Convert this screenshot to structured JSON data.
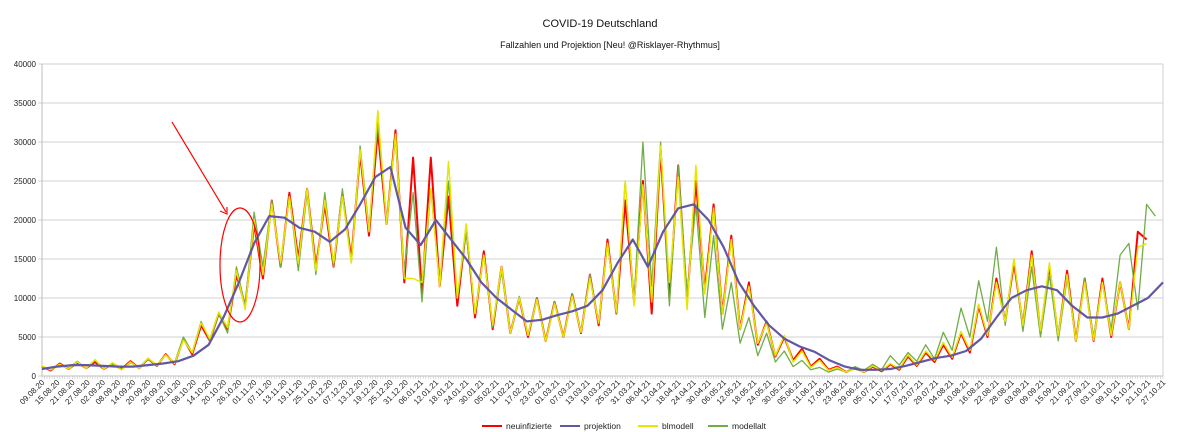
{
  "chart_data": {
    "type": "line",
    "title": "COVID-19 Deutschland",
    "subtitle": "Fallzahlen und Projektion [Neu! @Risklayer-Rhythmus]",
    "xlabel": "",
    "ylabel": "",
    "ylim": [
      0,
      40000
    ],
    "yticks": [
      "0",
      "5000",
      "10000",
      "15000",
      "20000",
      "25000",
      "30000",
      "35000",
      "40000"
    ],
    "grid": true,
    "legend_position": "bottom",
    "x_start_date": "09.08.20",
    "x_days_span": 444,
    "x_tick_step_days": 6,
    "xticks": [
      "09.08.20",
      "15.08.20",
      "21.08.20",
      "27.08.20",
      "02.09.20",
      "08.09.20",
      "14.09.20",
      "20.09.20",
      "26.09.20",
      "02.10.20",
      "08.10.20",
      "14.10.20",
      "20.10.20",
      "26.10.20",
      "01.11.20",
      "07.11.20",
      "13.11.20",
      "19.11.20",
      "25.11.20",
      "01.12.20",
      "07.12.20",
      "13.12.20",
      "19.12.20",
      "25.12.20",
      "31.12.20",
      "06.01.21",
      "12.01.21",
      "18.01.21",
      "24.01.21",
      "30.01.21",
      "05.02.21",
      "11.02.21",
      "17.02.21",
      "23.02.21",
      "01.03.21",
      "07.03.21",
      "13.03.21",
      "19.03.21",
      "25.03.21",
      "31.03.21",
      "06.04.21",
      "12.04.21",
      "18.04.21",
      "24.04.21",
      "30.04.21",
      "06.05.21",
      "12.05.21",
      "18.05.21",
      "24.05.21",
      "30.05.21",
      "05.06.21",
      "11.06.21",
      "17.06.21",
      "23.06.21",
      "29.06.21",
      "05.07.21",
      "11.07.21",
      "17.07.21",
      "23.07.21",
      "29.07.21",
      "04.08.21",
      "10.08.21",
      "16.08.21",
      "22.08.21",
      "28.08.21",
      "03.09.21",
      "09.09.21",
      "15.09.21",
      "21.09.21",
      "27.09.21",
      "03.10.21",
      "09.10.21",
      "15.10.21",
      "21.10.21",
      "27.10.21"
    ],
    "series": [
      {
        "name": "neuinfizierte",
        "color": "#ff0000",
        "width": 2,
        "step_days": 3.5,
        "values": [
          1200,
          700,
          1600,
          900,
          1700,
          1000,
          1800,
          900,
          1600,
          900,
          1900,
          1000,
          2200,
          1300,
          2800,
          1500,
          4800,
          2800,
          6500,
          4500,
          8000,
          6000,
          13000,
          9000,
          19500,
          12500,
          22500,
          14000,
          23500,
          15000,
          24000,
          14000,
          22000,
          14000,
          23500,
          15000,
          28500,
          18000,
          31500,
          19500,
          31500,
          12000,
          28000,
          10500,
          28000,
          11500,
          23000,
          9000,
          19000,
          7500,
          16000,
          6000,
          14000,
          5500,
          10000,
          5000,
          10000,
          4500,
          9500,
          5000,
          10500,
          5500,
          13000,
          6500,
          17500,
          8000,
          22500,
          9500,
          25000,
          8000,
          29000,
          10000,
          27000,
          9500,
          25000,
          11000,
          22000,
          8000,
          18000,
          6000,
          12000,
          4000,
          7000,
          2500,
          5000,
          2000,
          3500,
          1200,
          2200,
          800,
          1200,
          500,
          1000,
          500,
          1200,
          600,
          1500,
          800,
          2500,
          1300,
          3000,
          1800,
          4000,
          2200,
          5500,
          3000,
          9000,
          5000,
          12500,
          7000,
          14500,
          6500,
          16000,
          5500,
          14000,
          5000,
          13500,
          4500,
          12500,
          4500,
          12500,
          5000,
          12000,
          6000,
          18500,
          17500
        ]
      },
      {
        "name": "projektion",
        "color": "#6157a3",
        "width": 2.2,
        "step_days": 6,
        "values": [
          900,
          1200,
          1400,
          1400,
          1300,
          1200,
          1200,
          1400,
          1600,
          1900,
          2600,
          4000,
          7600,
          12000,
          17000,
          20500,
          20300,
          19000,
          18500,
          17200,
          18800,
          22000,
          25500,
          26800,
          19000,
          16800,
          20000,
          17500,
          15000,
          12000,
          10000,
          8500,
          7000,
          7200,
          7800,
          8300,
          9000,
          11000,
          14500,
          17500,
          14000,
          18500,
          21500,
          22000,
          20000,
          16500,
          12000,
          9000,
          6500,
          4800,
          3800,
          3100,
          2000,
          1200,
          800,
          800,
          900,
          1300,
          1800,
          2300,
          2600,
          3200,
          4800,
          7500,
          10000,
          11000,
          11500,
          11000,
          9000,
          7500,
          7500,
          8000,
          9000,
          10000,
          12000
        ]
      },
      {
        "name": "blmodell",
        "color": "#e6e600",
        "width": 1.5,
        "step_days": 3.5,
        "values": [
          1300,
          800,
          1500,
          900,
          1800,
          1000,
          2100,
          900,
          1700,
          800,
          1800,
          1000,
          2300,
          1400,
          2700,
          1600,
          4600,
          3000,
          6800,
          4800,
          8200,
          6200,
          13500,
          8500,
          20000,
          13000,
          22000,
          14500,
          23000,
          14500,
          24000,
          13500,
          22500,
          14500,
          23000,
          14500,
          29000,
          18500,
          34000,
          19500,
          31000,
          12500,
          12500,
          12000,
          24000,
          11500,
          27500,
          10000,
          19500,
          8000,
          15500,
          6500,
          14000,
          5500,
          10000,
          5200,
          9800,
          4500,
          9300,
          5000,
          10200,
          5600,
          12500,
          6800,
          17000,
          8200,
          25000,
          9000,
          24500,
          9500,
          29500,
          12000,
          25500,
          8500,
          27000,
          10500,
          21500,
          8000,
          17500,
          6000,
          11500,
          4200,
          6800,
          2600,
          5200,
          1800,
          3200,
          1100,
          2000,
          700,
          1100,
          500,
          900,
          500,
          1300,
          700,
          1600,
          900,
          2700,
          1400,
          3200,
          2000,
          4300,
          2400,
          5700,
          3300,
          9200,
          5200,
          12000,
          7000,
          15000,
          6500,
          15500,
          5800,
          14500,
          5200,
          13000,
          4500,
          12000,
          4600,
          12000,
          5200,
          12000,
          6000,
          16500,
          17000
        ]
      },
      {
        "name": "modellalt",
        "color": "#70ad47",
        "width": 1.3,
        "step_days": 3.5,
        "values": [
          1100,
          800,
          1500,
          1000,
          1900,
          1000,
          2000,
          1000,
          1500,
          800,
          1700,
          1100,
          2200,
          1300,
          2700,
          1700,
          5000,
          3000,
          7000,
          4500,
          8000,
          5500,
          14000,
          9000,
          21000,
          14000,
          22500,
          14000,
          23000,
          13500,
          23500,
          13000,
          23500,
          14000,
          24000,
          14500,
          29500,
          19000,
          32500,
          20000,
          30500,
          13500,
          23500,
          9500,
          24000,
          11500,
          25000,
          10000,
          18500,
          8000,
          15500,
          6200,
          13500,
          5500,
          10200,
          5300,
          10000,
          4500,
          9500,
          5000,
          10500,
          5600,
          13000,
          6800,
          17000,
          8000,
          25000,
          9500,
          30000,
          11500,
          30000,
          9000,
          27000,
          10500,
          22000,
          7500,
          18000,
          6000,
          12000,
          4200,
          7500,
          2600,
          5500,
          1800,
          3200,
          1200,
          2000,
          800,
          1100,
          500,
          900,
          500,
          1200,
          700,
          1500,
          800,
          2600,
          1400,
          3000,
          1900,
          4000,
          2200,
          5600,
          3300,
          8700,
          5000,
          12200,
          7000,
          16500,
          6500,
          15000,
          5700,
          14000,
          5000,
          13000,
          4500,
          12500,
          4500,
          12500,
          5000,
          12000,
          6000,
          15500,
          17000,
          8500,
          22000,
          20500
        ]
      }
    ],
    "annotations": [
      {
        "type": "ellipse",
        "color": "#ff0000",
        "around_date": "26.10.20"
      },
      {
        "type": "arrow",
        "color": "#ff0000",
        "points_to_date": "20.10.20"
      }
    ]
  }
}
